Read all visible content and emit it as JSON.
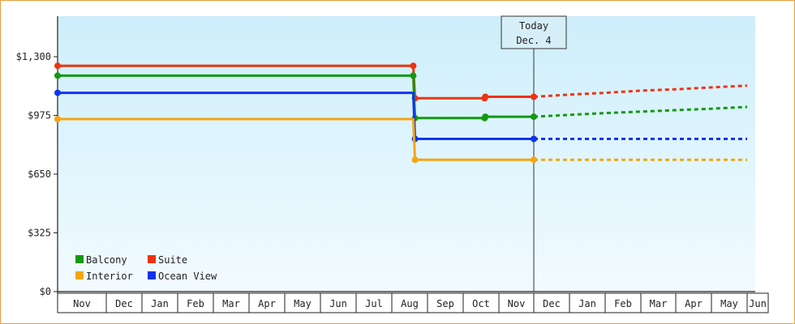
{
  "chart_data": {
    "type": "line",
    "title": "",
    "xlabel": "",
    "ylabel": "",
    "x_months": [
      "Nov",
      "Dec",
      "Jan",
      "Feb",
      "Mar",
      "Apr",
      "May",
      "Jun",
      "Jul",
      "Aug",
      "Sep",
      "Oct",
      "Nov",
      "Dec",
      "Jan",
      "Feb",
      "Mar",
      "Apr",
      "May",
      "Jun"
    ],
    "y_ticks": [
      {
        "value": 0,
        "label": "$0"
      },
      {
        "value": 325,
        "label": "$325"
      },
      {
        "value": 650,
        "label": "$650"
      },
      {
        "value": 975,
        "label": "$975"
      },
      {
        "value": 1300,
        "label": "$1,300"
      }
    ],
    "ylim": [
      0,
      1300
    ],
    "today": {
      "label_line1": "Today",
      "label_line2": "Dec. 4",
      "month_index": 13
    },
    "grid": false,
    "legend_position": "bottom-left",
    "series": [
      {
        "name": "Suite",
        "color": "#ee3311",
        "key": "suite",
        "points": [
          [
            0,
            1250
          ],
          [
            9.6,
            1250
          ],
          [
            9.65,
            1070
          ],
          [
            11.6,
            1070
          ],
          [
            11.62,
            1078
          ],
          [
            13,
            1078
          ]
        ],
        "markers": [
          [
            0,
            1250
          ],
          [
            9.6,
            1250
          ],
          [
            9.65,
            1070
          ],
          [
            11.6,
            1070
          ],
          [
            11.62,
            1078
          ],
          [
            13,
            1078
          ]
        ],
        "forecast": [
          [
            13,
            1078
          ],
          [
            14,
            1090
          ],
          [
            15,
            1100
          ],
          [
            16,
            1112
          ],
          [
            17,
            1120
          ],
          [
            18,
            1130
          ],
          [
            19,
            1140
          ]
        ]
      },
      {
        "name": "Balcony",
        "color": "#119911",
        "key": "balcony",
        "points": [
          [
            0,
            1195
          ],
          [
            9.6,
            1195
          ],
          [
            9.65,
            960
          ],
          [
            11.6,
            960
          ],
          [
            11.62,
            968
          ],
          [
            13,
            968
          ]
        ],
        "markers": [
          [
            0,
            1195
          ],
          [
            9.6,
            1195
          ],
          [
            9.65,
            960
          ],
          [
            11.6,
            960
          ],
          [
            11.62,
            968
          ],
          [
            13,
            968
          ]
        ],
        "forecast": [
          [
            13,
            968
          ],
          [
            14,
            978
          ],
          [
            15,
            988
          ],
          [
            16,
            996
          ],
          [
            17,
            1004
          ],
          [
            18,
            1012
          ],
          [
            19,
            1022
          ]
        ]
      },
      {
        "name": "Ocean View",
        "color": "#1133ee",
        "key": "ocean",
        "points": [
          [
            0,
            1100
          ],
          [
            9.6,
            1100
          ],
          [
            9.65,
            845
          ],
          [
            13,
            845
          ]
        ],
        "markers": [
          [
            0,
            1100
          ],
          [
            9.65,
            845
          ],
          [
            13,
            845
          ]
        ],
        "forecast": [
          [
            13,
            845
          ],
          [
            19,
            845
          ]
        ]
      },
      {
        "name": "Interior",
        "color": "#f5a511",
        "key": "interior",
        "points": [
          [
            0,
            955
          ],
          [
            9.6,
            955
          ],
          [
            9.65,
            730
          ],
          [
            13,
            730
          ]
        ],
        "markers": [
          [
            0,
            955
          ],
          [
            9.65,
            730
          ],
          [
            13,
            730
          ]
        ],
        "forecast": [
          [
            13,
            730
          ],
          [
            19,
            730
          ]
        ]
      }
    ],
    "legend_items": [
      {
        "name": "Balcony",
        "color": "#119911"
      },
      {
        "name": "Suite",
        "color": "#ee3311"
      },
      {
        "name": "Interior",
        "color": "#f5a511"
      },
      {
        "name": "Ocean View",
        "color": "#1133ee"
      }
    ]
  }
}
